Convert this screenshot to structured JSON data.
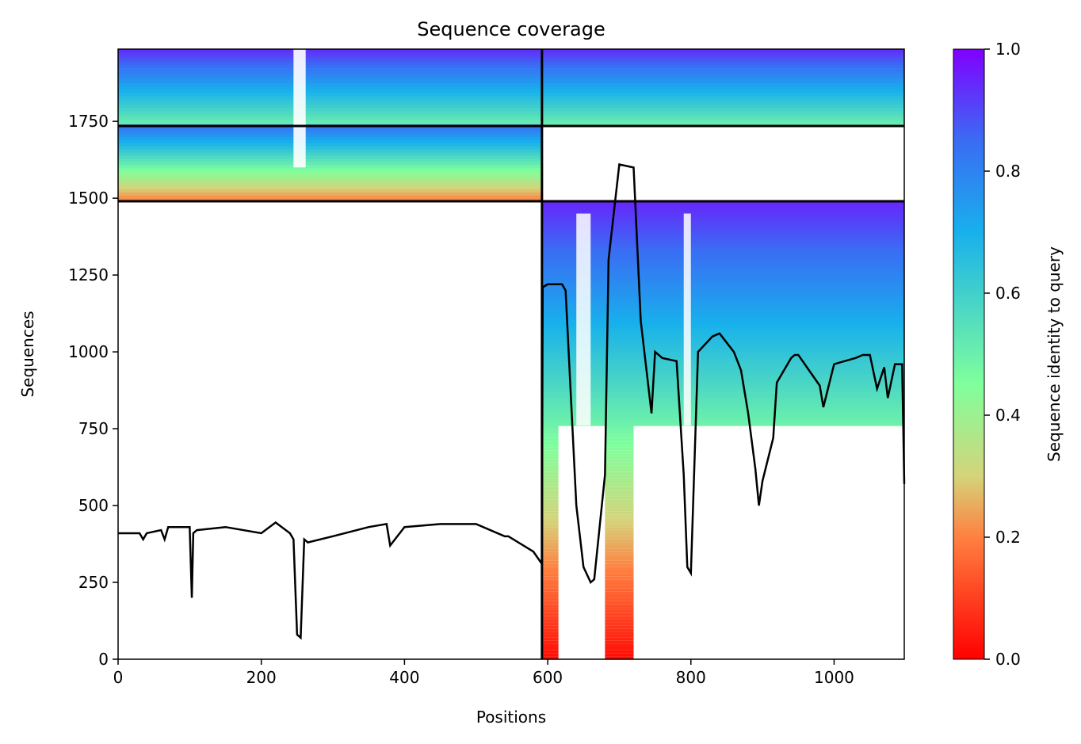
{
  "chart_data": {
    "type": "heatmap",
    "title": "Sequence coverage",
    "xlabel": "Positions",
    "ylabel": "Sequences",
    "xlim": [
      0,
      1098
    ],
    "ylim": [
      0,
      1985
    ],
    "xticks": [
      0,
      200,
      400,
      600,
      800,
      1000
    ],
    "yticks": [
      0,
      250,
      500,
      750,
      1000,
      1250,
      1500,
      1750
    ],
    "colorbar": {
      "label": "Sequence identity to query",
      "range": [
        0,
        1
      ],
      "ticks": [
        "0.0",
        "0.2",
        "0.4",
        "0.6",
        "0.8",
        "1.0"
      ],
      "colormap": "rainbow_r"
    },
    "blocks": [
      {
        "x": [
          0,
          592
        ],
        "y": [
          1735,
          1985
        ],
        "coverage": "full",
        "identity_top": 0.95,
        "identity_bottom": 0.5
      },
      {
        "x": [
          592,
          1098
        ],
        "y": [
          1735,
          1985
        ],
        "coverage": "full",
        "identity_top": 0.95,
        "identity_bottom": 0.5
      },
      {
        "x": [
          0,
          592
        ],
        "y": [
          1490,
          1735
        ],
        "coverage": "full",
        "identity_top": 0.85,
        "identity_bottom": 0.2
      },
      {
        "x": [
          592,
          1098
        ],
        "y": [
          0,
          1490
        ],
        "coverage": "partial",
        "identity_top": 0.95,
        "identity_bottom": 0.02
      }
    ],
    "separator_lines": {
      "horizontal": [
        1490,
        1735
      ],
      "vertical": [
        592
      ]
    },
    "coverage_line": {
      "color": "#000000",
      "x": [
        0,
        30,
        35,
        40,
        60,
        65,
        70,
        100,
        103,
        105,
        110,
        150,
        200,
        220,
        240,
        245,
        250,
        255,
        260,
        265,
        300,
        350,
        375,
        380,
        400,
        450,
        500,
        540,
        545,
        580,
        592,
        593,
        600,
        620,
        625,
        640,
        650,
        660,
        665,
        680,
        685,
        700,
        720,
        730,
        740,
        745,
        750,
        760,
        780,
        790,
        795,
        800,
        810,
        830,
        840,
        860,
        870,
        880,
        890,
        895,
        900,
        915,
        920,
        940,
        945,
        950,
        980,
        985,
        1000,
        1030,
        1040,
        1050,
        1060,
        1070,
        1075,
        1085,
        1095,
        1098
      ],
      "y": [
        410,
        410,
        390,
        410,
        420,
        390,
        430,
        430,
        200,
        410,
        420,
        430,
        410,
        445,
        410,
        390,
        80,
        70,
        390,
        380,
        400,
        430,
        440,
        370,
        430,
        440,
        440,
        400,
        400,
        350,
        310,
        1210,
        1220,
        1220,
        1200,
        500,
        300,
        250,
        260,
        600,
        1300,
        1610,
        1600,
        1100,
        900,
        800,
        1000,
        980,
        970,
        600,
        300,
        280,
        1000,
        1050,
        1060,
        1000,
        940,
        800,
        620,
        500,
        580,
        720,
        900,
        980,
        990,
        990,
        890,
        820,
        960,
        980,
        990,
        990,
        880,
        950,
        850,
        960,
        960,
        570
      ]
    }
  }
}
